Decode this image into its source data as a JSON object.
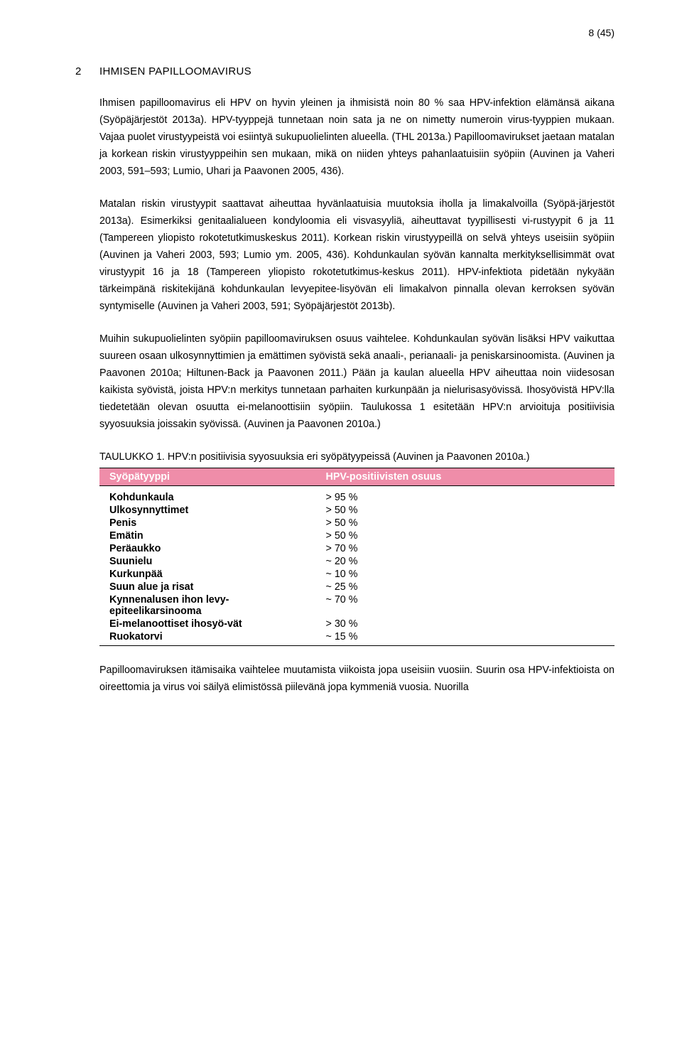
{
  "page_number": "8 (45)",
  "section": {
    "number": "2",
    "title": "IHMISEN PAPILLOOMAVIRUS"
  },
  "paragraphs": {
    "p1": "Ihmisen papilloomavirus eli HPV on hyvin yleinen ja ihmisistä noin 80 % saa HPV-infektion elämänsä aikana (Syöpäjärjestöt 2013a). HPV-tyyppejä tunnetaan noin sata ja ne on nimetty numeroin virus-tyyppien mukaan. Vajaa puolet virustyypeistä voi esiintyä sukupuolielinten alueella. (THL 2013a.) Papilloomavirukset jaetaan matalan ja korkean riskin virustyyppeihin sen mukaan, mikä on niiden yhteys pahanlaatuisiin syöpiin (Auvinen ja Vaheri 2003, 591–593; Lumio, Uhari ja Paavonen 2005, 436).",
    "p2": "Matalan riskin virustyypit saattavat aiheuttaa hyvänlaatuisia muutoksia iholla ja limakalvoilla (Syöpä-järjestöt 2013a). Esimerkiksi genitaalialueen kondyloomia eli visvasyyliä, aiheuttavat tyypillisesti vi-rustyypit 6 ja 11 (Tampereen yliopisto rokotetutkimuskeskus 2011). Korkean riskin virustyypeillä on selvä yhteys useisiin syöpiin (Auvinen ja Vaheri 2003, 593; Lumio ym. 2005, 436). Kohdunkaulan syövän kannalta merkityksellisimmät ovat virustyypit 16 ja 18 (Tampereen yliopisto rokotetutkimus-keskus 2011). HPV-infektiota pidetään nykyään tärkeimpänä riskitekijänä kohdunkaulan levyepitee-lisyövän eli limakalvon pinnalla olevan kerroksen syövän syntymiselle (Auvinen ja Vaheri 2003, 591; Syöpäjärjestöt 2013b).",
    "p3": "Muihin sukupuolielinten syöpiin papilloomaviruksen osuus vaihtelee. Kohdunkaulan syövän lisäksi HPV vaikuttaa suureen osaan ulkosynnyttimien ja emättimen syövistä sekä anaali-, perianaali- ja peniskarsinoomista. (Auvinen ja Paavonen 2010a; Hiltunen-Back ja Paavonen 2011.) Pään ja kaulan alueella HPV aiheuttaa noin viidesosan kaikista syövistä, joista HPV:n merkitys tunnetaan parhaiten kurkunpään ja nielurisasyövissä. Ihosyövistä HPV:lla tiedetetään olevan osuutta ei-melanoottisiin syöpiin. Taulukossa 1 esitetään HPV:n arvioituja positiivisia syyosuuksia joissakin syövissä. (Auvinen ja Paavonen 2010a.)",
    "p4": "Papilloomaviruksen itämisaika vaihtelee muutamista viikoista jopa useisiin vuosiin. Suurin osa HPV-infektioista on oireettomia ja virus voi säilyä elimistössä piilevänä jopa kymmeniä vuosia. Nuorilla"
  },
  "table": {
    "caption": "TAULUKKO 1. HPV:n positiivisia syyosuuksia eri syöpätyypeissä (Auvinen ja Paavonen 2010a.)",
    "header_bg": "#ef8da9",
    "header_text_color": "#ffffff",
    "columns": [
      "Syöpätyyppi",
      "HPV-positiivisten osuus"
    ],
    "rows": [
      {
        "label": "Kohdunkaula",
        "value": "> 95 %"
      },
      {
        "label": "Ulkosynnyttimet",
        "value": "> 50 %"
      },
      {
        "label": "Penis",
        "value": "> 50 %"
      },
      {
        "label": "Emätin",
        "value": "> 50 %"
      },
      {
        "label": "Peräaukko",
        "value": "> 70 %"
      },
      {
        "label": "Suunielu",
        "value": "~ 20 %"
      },
      {
        "label": "Kurkunpää",
        "value": "~ 10 %"
      },
      {
        "label": "Suun alue ja risat",
        "value": "~ 25 %"
      },
      {
        "label": "Kynnenalusen ihon levy-epiteelikarsinooma",
        "value": "~ 70 %"
      },
      {
        "label": "Ei-melanoottiset ihosyö-vät",
        "value": "> 30 %"
      },
      {
        "label": "Ruokatorvi",
        "value": "~ 15 %"
      }
    ]
  }
}
